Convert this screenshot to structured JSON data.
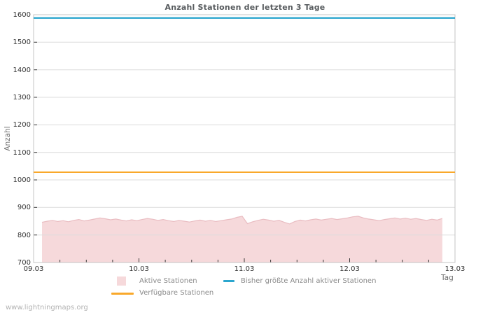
{
  "title": "Anzahl Stationen der letzten 3 Tage",
  "watermark": "www.lightningmaps.org",
  "chart_data": {
    "type": "area",
    "title": "Anzahl Stationen der letzten 3 Tage",
    "xlabel": "Tag",
    "ylabel": "Anzahl",
    "ylim": [
      700,
      1600
    ],
    "y_ticks": [
      700,
      800,
      900,
      1000,
      1100,
      1200,
      1300,
      1400,
      1500,
      1600
    ],
    "x_ticks": [
      "09.03",
      "10.03",
      "11.03",
      "12.03",
      "13.03"
    ],
    "x_minor_ticks_per_interval": 3,
    "grid": "horizontal",
    "legend_position": "bottom-center",
    "series": [
      {
        "name": "Aktive Stationen",
        "type": "area",
        "color": "#f6d9db",
        "edge_color": "#e9bcc1",
        "x_start_day": 0.08,
        "x_step_day": 0.05,
        "values": [
          846,
          850,
          853,
          849,
          852,
          848,
          853,
          856,
          851,
          854,
          858,
          862,
          859,
          855,
          858,
          854,
          851,
          855,
          852,
          856,
          860,
          857,
          853,
          856,
          852,
          849,
          853,
          850,
          847,
          851,
          854,
          850,
          853,
          849,
          852,
          855,
          858,
          864,
          868,
          841,
          848,
          853,
          857,
          854,
          850,
          853,
          846,
          840,
          849,
          854,
          851,
          855,
          858,
          854,
          857,
          860,
          856,
          859,
          862,
          866,
          868,
          862,
          858,
          855,
          852,
          856,
          859,
          862,
          858,
          861,
          857,
          860,
          856,
          853,
          857,
          854,
          860
        ]
      },
      {
        "name": "Bisher größte Anzahl aktiver Stationen",
        "type": "line",
        "color": "#2ba6ce",
        "constant_value": 1588
      },
      {
        "name": "Verfügbare Stationen",
        "type": "line",
        "color": "#f9a82b",
        "constant_value": 1028
      }
    ]
  }
}
